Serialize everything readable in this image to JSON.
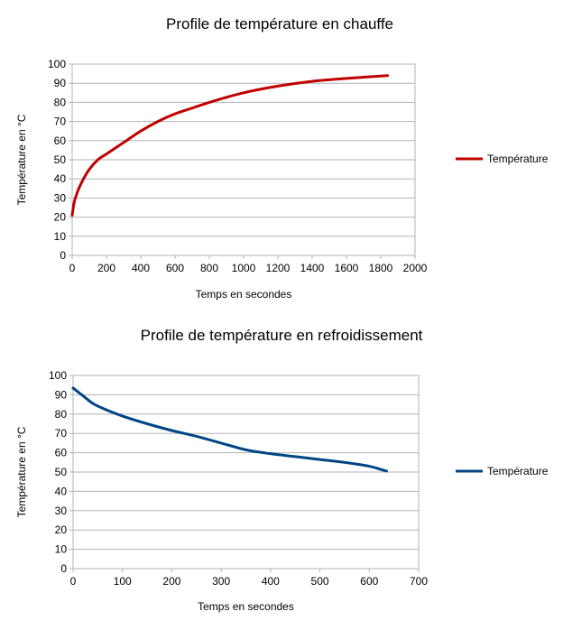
{
  "chart_data": [
    {
      "type": "line",
      "title": "Profile de température en chauffe",
      "xlabel": "Temps en secondes",
      "ylabel": "Température en °C",
      "xlim": [
        0,
        2000
      ],
      "ylim": [
        0,
        100
      ],
      "xticks": [
        0,
        200,
        400,
        600,
        800,
        1000,
        1200,
        1400,
        1600,
        1800,
        2000
      ],
      "yticks": [
        0,
        10,
        20,
        30,
        40,
        50,
        60,
        70,
        80,
        90,
        100
      ],
      "grid": true,
      "legend_position": "right",
      "series": [
        {
          "name": "Température",
          "color": "#c00000",
          "x": [
            0,
            10,
            30,
            60,
            100,
            150,
            200,
            300,
            400,
            500,
            600,
            700,
            800,
            1000,
            1200,
            1400,
            1600,
            1840
          ],
          "y": [
            21,
            27,
            33,
            39,
            45,
            50,
            53,
            59,
            65,
            70,
            74,
            77,
            80,
            85,
            88.5,
            91,
            92.5,
            94
          ]
        }
      ]
    },
    {
      "type": "line",
      "title": "Profile de température en refroidissement",
      "xlabel": "Temps en secondes",
      "ylabel": "Température en °C",
      "xlim": [
        0,
        700
      ],
      "ylim": [
        0,
        100
      ],
      "xticks": [
        0,
        100,
        200,
        300,
        400,
        500,
        600,
        700
      ],
      "yticks": [
        0,
        10,
        20,
        30,
        40,
        50,
        60,
        70,
        80,
        90,
        100
      ],
      "grid": true,
      "legend_position": "right",
      "series": [
        {
          "name": "Température",
          "color": "#004586",
          "x": [
            0,
            20,
            40,
            60,
            100,
            150,
            200,
            250,
            300,
            350,
            400,
            450,
            500,
            550,
            600,
            635
          ],
          "y": [
            93.5,
            89.5,
            85.5,
            83,
            79,
            75,
            71.5,
            68.5,
            65,
            61.5,
            59.5,
            58,
            56.5,
            55,
            53,
            50.5
          ]
        }
      ]
    }
  ]
}
